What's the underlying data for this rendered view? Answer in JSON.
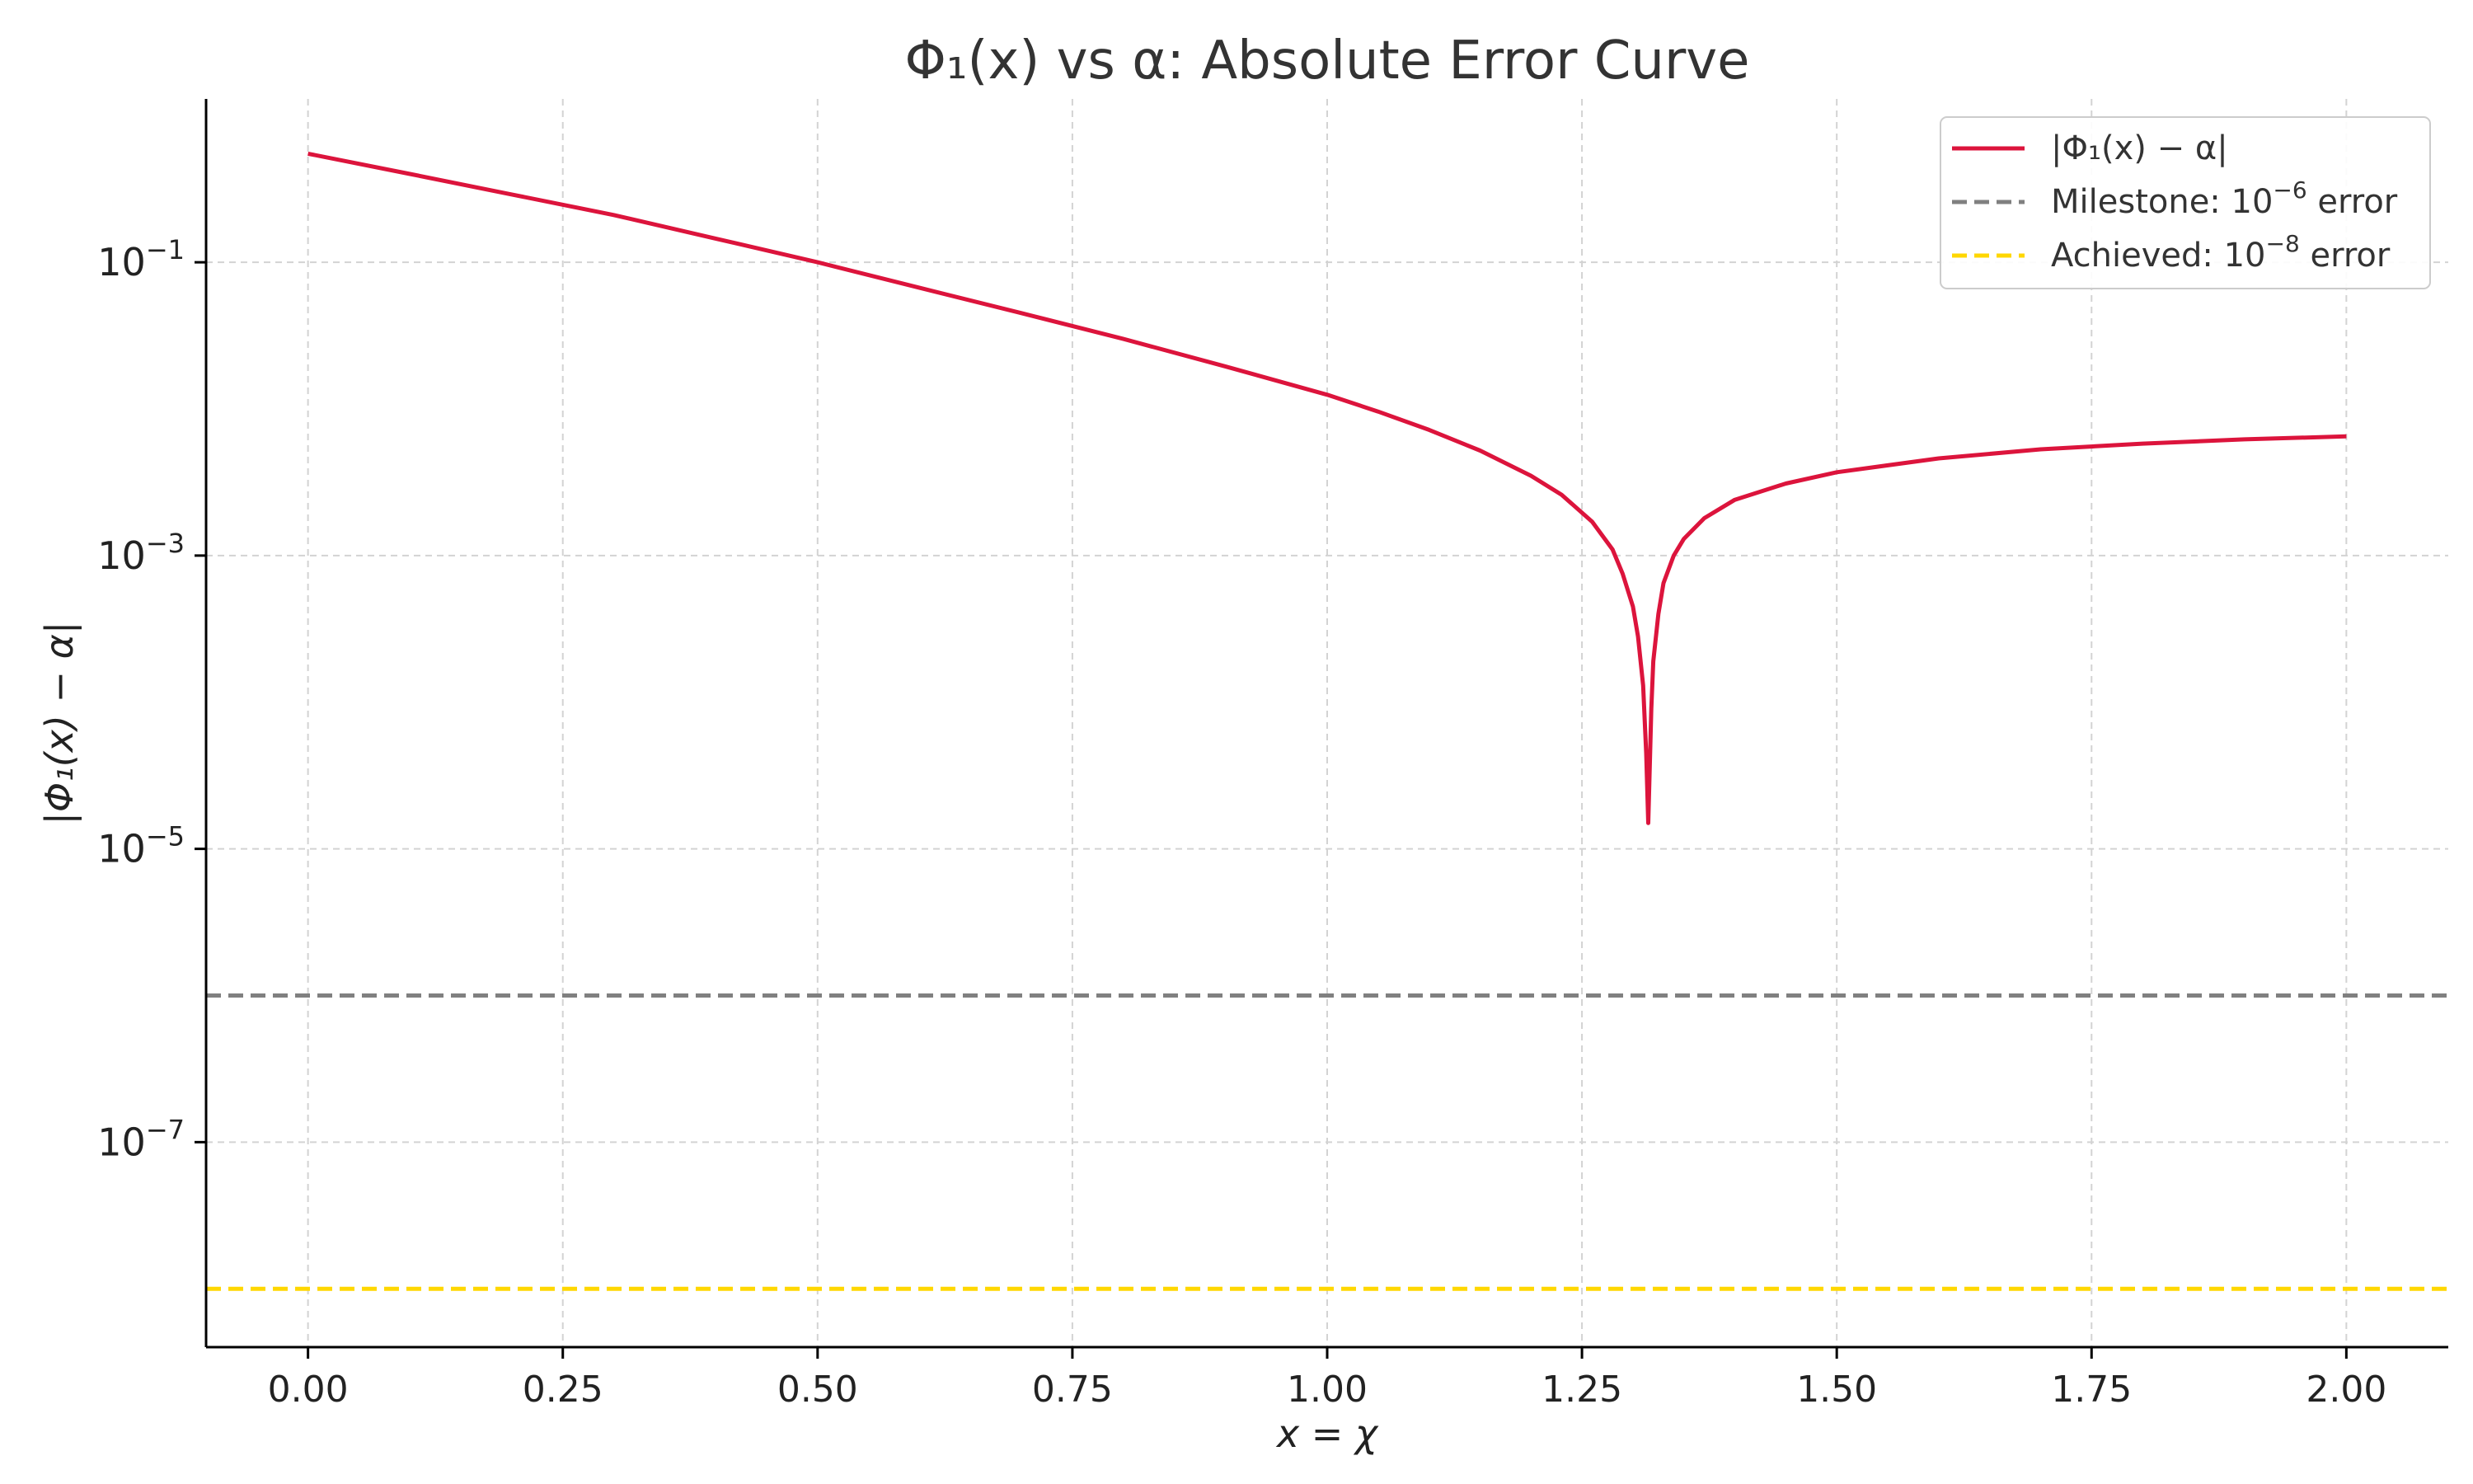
{
  "chart_data": {
    "type": "line",
    "title": "Φ₁(x) vs α: Absolute Error Curve",
    "xlabel": "x = χ",
    "ylabel": "|Φ₁(x) − α|",
    "xlim": [
      -0.1,
      2.1
    ],
    "ylim": [
      4e-09,
      1.3
    ],
    "x_scale": "linear",
    "y_scale": "log",
    "grid": true,
    "legend_position": "top-right",
    "x_ticks": [
      {
        "value": 0.0,
        "label": "0.00"
      },
      {
        "value": 0.25,
        "label": "0.25"
      },
      {
        "value": 0.5,
        "label": "0.50"
      },
      {
        "value": 0.75,
        "label": "0.75"
      },
      {
        "value": 1.0,
        "label": "1.00"
      },
      {
        "value": 1.25,
        "label": "1.25"
      },
      {
        "value": 1.5,
        "label": "1.50"
      },
      {
        "value": 1.75,
        "label": "1.75"
      },
      {
        "value": 2.0,
        "label": "2.00"
      }
    ],
    "y_ticks": [
      {
        "value": 0.1,
        "base": "10",
        "exp": "−1"
      },
      {
        "value": 0.001,
        "base": "10",
        "exp": "−3"
      },
      {
        "value": 1e-05,
        "base": "10",
        "exp": "−5"
      },
      {
        "value": 1e-07,
        "base": "10",
        "exp": "−7"
      }
    ],
    "series": [
      {
        "name": "|Φ₁(x) − α|",
        "color": "#dc143c",
        "style": "solid",
        "x": [
          0.0,
          0.1,
          0.2,
          0.3,
          0.4,
          0.5,
          0.6,
          0.7,
          0.8,
          0.9,
          1.0,
          1.05,
          1.1,
          1.15,
          1.2,
          1.23,
          1.26,
          1.28,
          1.29,
          1.3,
          1.305,
          1.31,
          1.313,
          1.315,
          1.318,
          1.32,
          1.325,
          1.33,
          1.34,
          1.35,
          1.37,
          1.4,
          1.45,
          1.5,
          1.6,
          1.7,
          1.8,
          1.9,
          2.0
        ],
        "y": [
          0.55,
          0.4,
          0.29,
          0.21,
          0.145,
          0.1,
          0.067,
          0.045,
          0.03,
          0.0195,
          0.0125,
          0.0096,
          0.0072,
          0.0052,
          0.0035,
          0.0026,
          0.0017,
          0.0011,
          0.00075,
          0.00045,
          0.00028,
          0.00013,
          4.5e-05,
          1.5e-05,
          9e-05,
          0.00019,
          0.0004,
          0.00065,
          0.001,
          0.0013,
          0.0018,
          0.0024,
          0.0031,
          0.0037,
          0.0046,
          0.0053,
          0.0058,
          0.0062,
          0.0065
        ]
      },
      {
        "name": "Milestone: 10⁻⁶ error",
        "legend_base": "Milestone: 10",
        "legend_exp": "−6",
        "legend_suffix": " error",
        "color": "#808080",
        "style": "dashed",
        "y_const": 1e-06
      },
      {
        "name": "Achieved: 10⁻⁸ error",
        "legend_base": "Achieved: 10",
        "legend_exp": "−8",
        "legend_suffix": " error",
        "color": "#ffd700",
        "style": "dashed",
        "y_const": 1e-08
      }
    ]
  }
}
